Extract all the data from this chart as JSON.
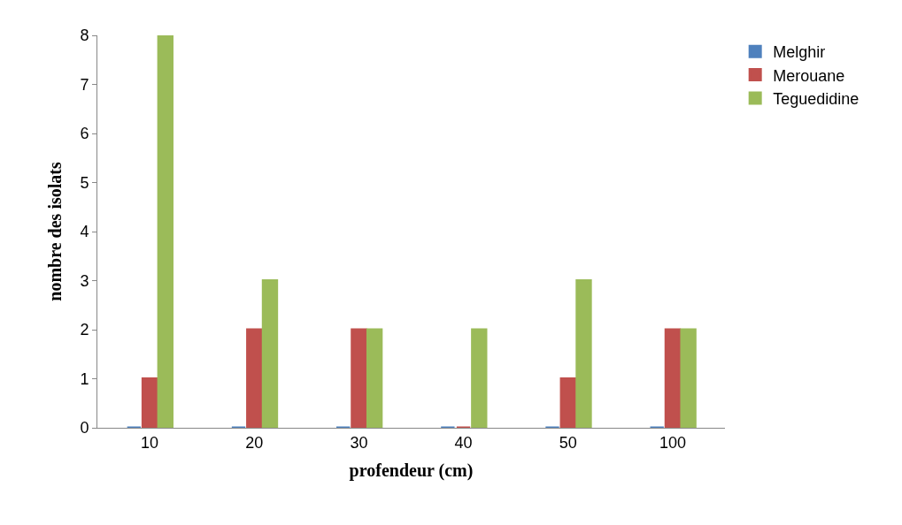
{
  "chart_data": {
    "type": "bar",
    "xlabel": "profendeur (cm)",
    "ylabel": "nombre des isolats",
    "categories": [
      "10",
      "20",
      "30",
      "40",
      "50",
      "100"
    ],
    "series": [
      {
        "name": "Melghir",
        "color": "#4f81bd",
        "values": [
          0,
          0,
          0,
          0,
          0,
          0
        ]
      },
      {
        "name": "Merouane",
        "color": "#c0504d",
        "values": [
          1,
          2,
          2,
          0,
          1,
          2
        ]
      },
      {
        "name": "Teguedidine",
        "color": "#9bbb59",
        "values": [
          8,
          3,
          2,
          2,
          3,
          2
        ]
      }
    ],
    "ylim": [
      0,
      8
    ],
    "yticks": [
      0,
      1,
      2,
      3,
      4,
      5,
      6,
      7,
      8
    ],
    "legend": "right"
  }
}
